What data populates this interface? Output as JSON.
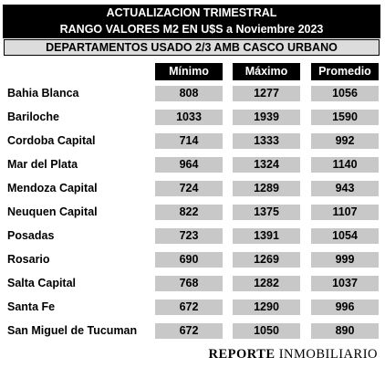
{
  "header": {
    "line1": "ACTUALIZACION TRIMESTRAL",
    "line2": "RANGO VALORES M2 EN U$S a Noviembre 2023"
  },
  "subheader": "DEPARTAMENTOS USADO  2/3 AMB  CASCO URBANO",
  "brand": {
    "strong": "REPORTE",
    "rest": " INMOBILIARIO"
  },
  "chart_data": {
    "type": "table",
    "columns": [
      "Mínimo",
      "Máximo",
      "Promedio"
    ],
    "rows": [
      {
        "label": "Bahia Blanca",
        "values": [
          "808",
          "1277",
          "1056"
        ]
      },
      {
        "label": "Bariloche",
        "values": [
          "1033",
          "1939",
          "1590"
        ]
      },
      {
        "label": "Cordoba Capital",
        "values": [
          "714",
          "1333",
          "992"
        ]
      },
      {
        "label": "Mar del Plata",
        "values": [
          "964",
          "1324",
          "1140"
        ]
      },
      {
        "label": "Mendoza Capital",
        "values": [
          "724",
          "1289",
          "943"
        ]
      },
      {
        "label": "Neuquen Capital",
        "values": [
          "822",
          "1375",
          "1107"
        ]
      },
      {
        "label": "Posadas",
        "values": [
          "723",
          "1391",
          "1054"
        ]
      },
      {
        "label": "Rosario",
        "values": [
          "690",
          "1269",
          "999"
        ]
      },
      {
        "label": "Salta Capital",
        "values": [
          "768",
          "1282",
          "1037"
        ]
      },
      {
        "label": "Santa Fe",
        "values": [
          "672",
          "1290",
          "996"
        ]
      },
      {
        "label": "San Miguel de Tucuman",
        "values": [
          "672",
          "1050",
          "890"
        ]
      }
    ]
  }
}
